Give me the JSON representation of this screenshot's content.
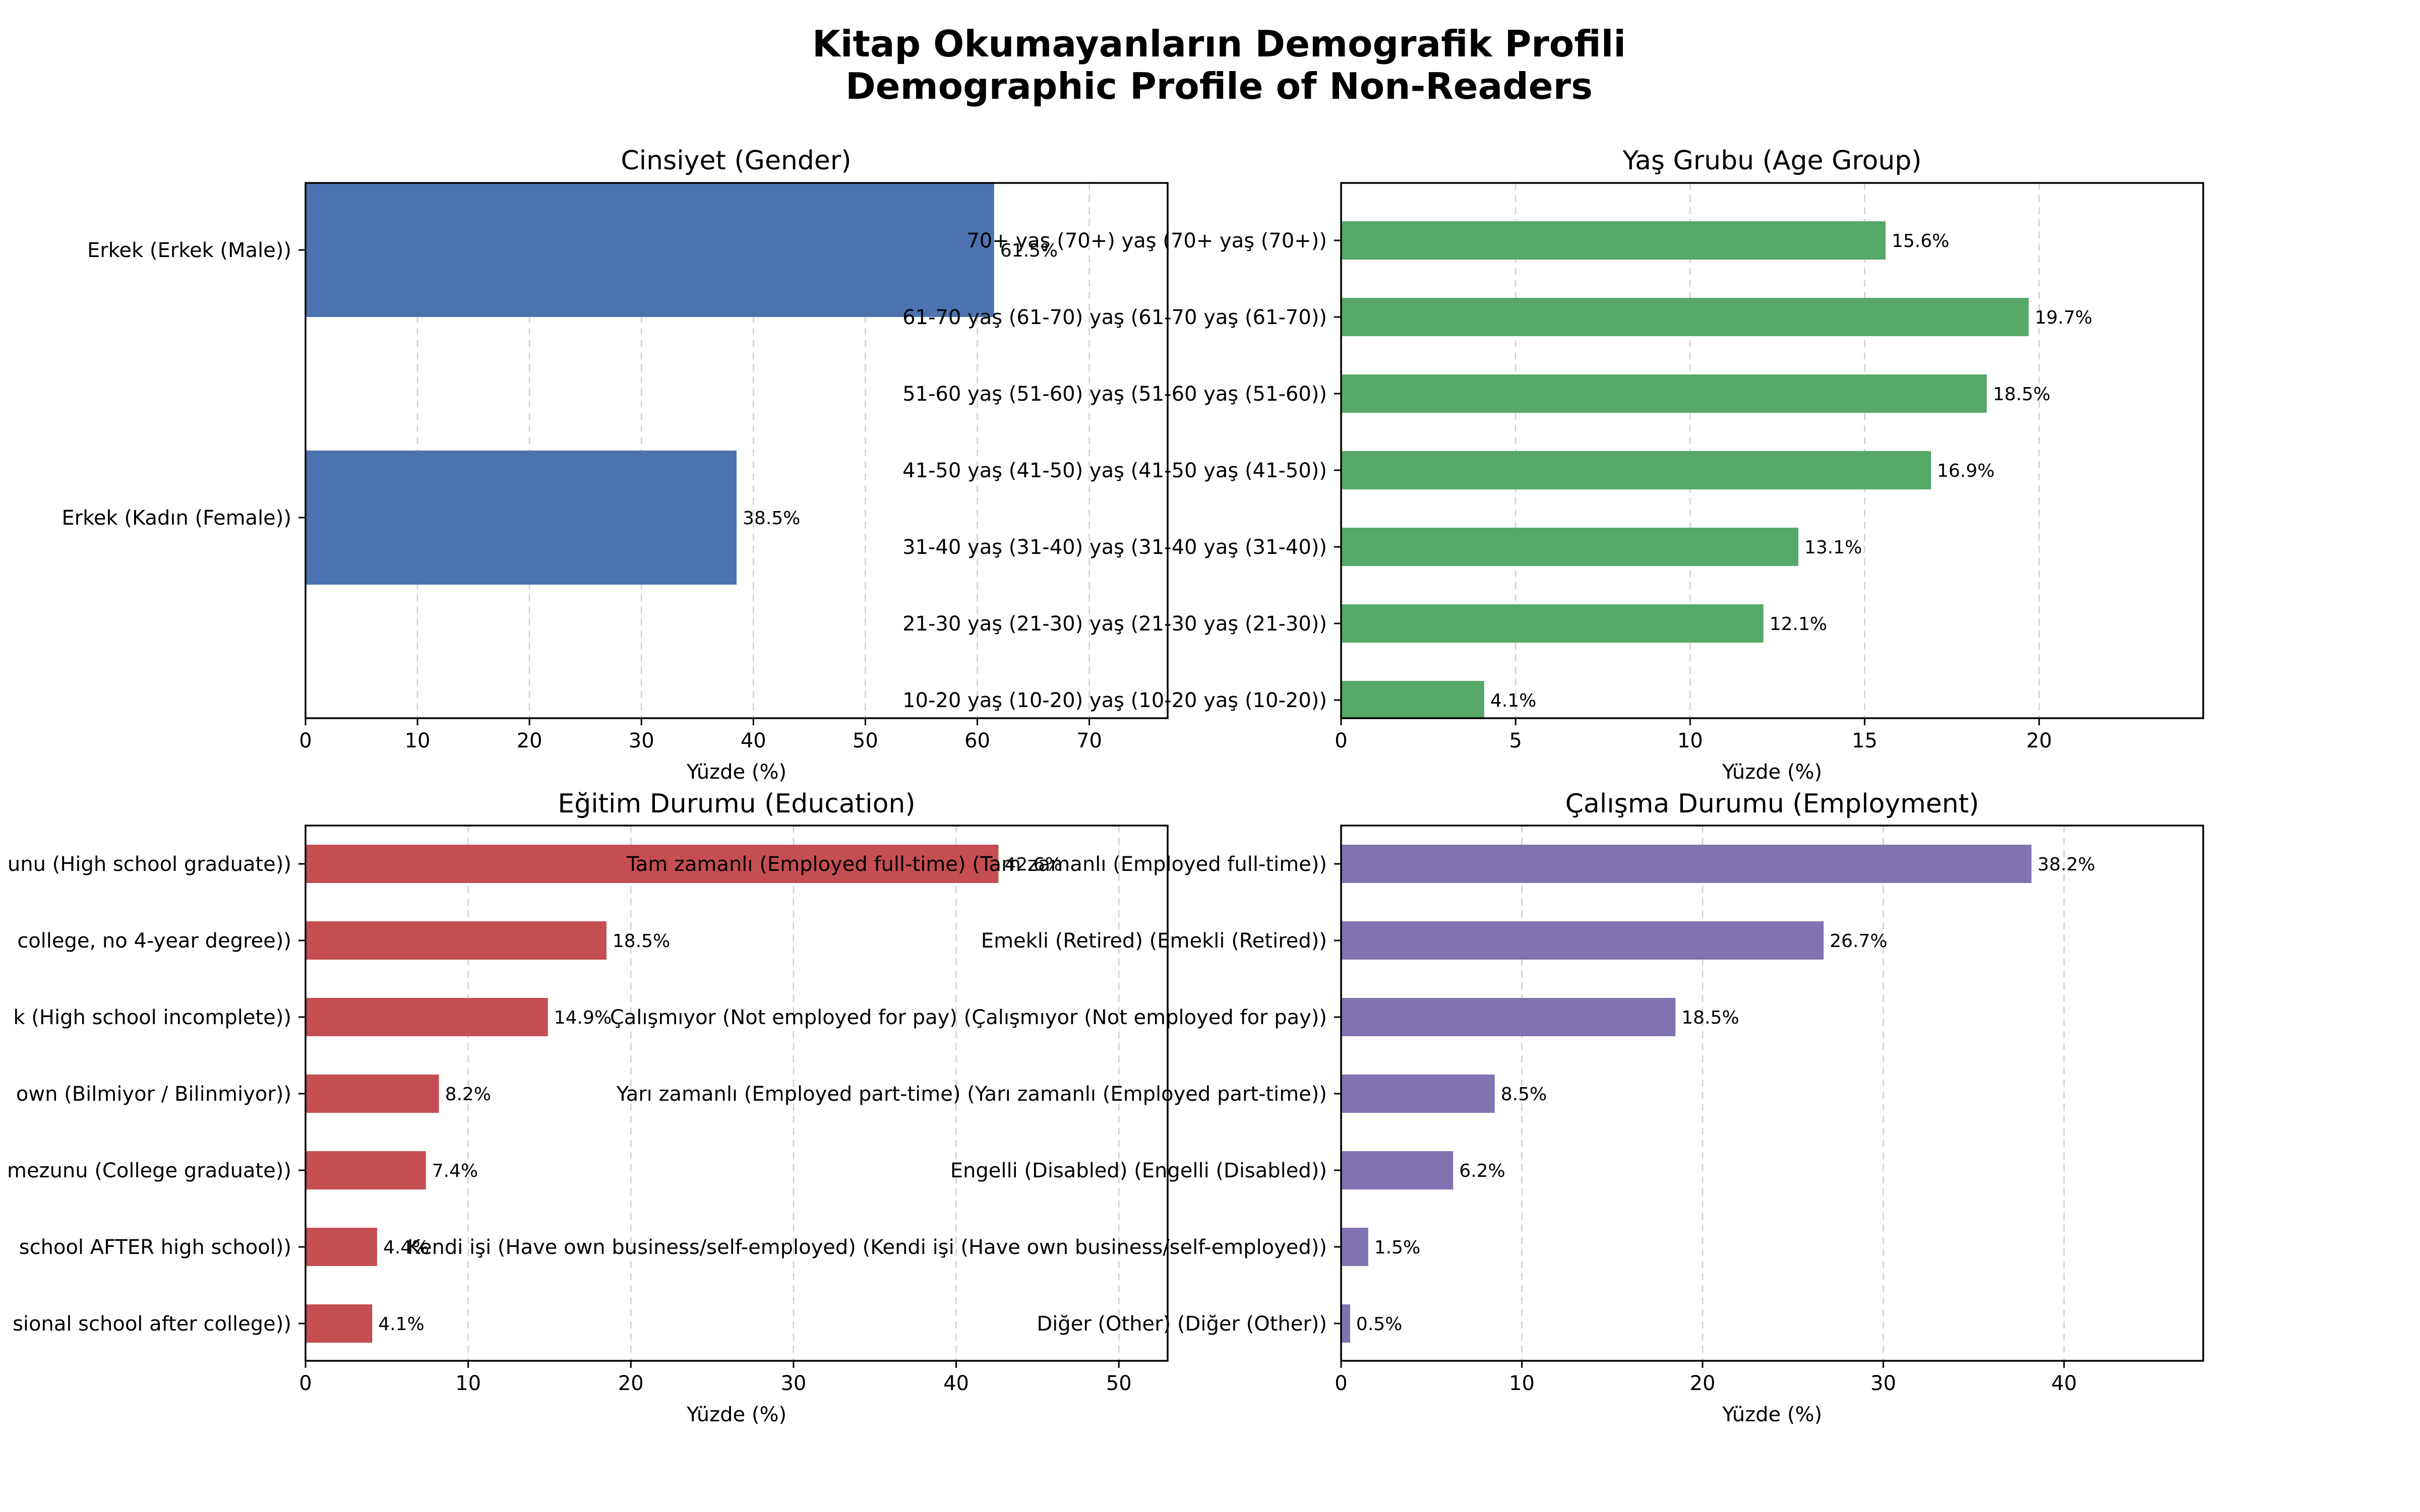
{
  "figure": {
    "title_line1": "Kitap Okumayanların Demografik Profili",
    "title_line2": "Demographic Profile of Non-Readers"
  },
  "chart_data": [
    {
      "type": "bar",
      "orientation": "horizontal",
      "title": "Cinsiyet (Gender)",
      "xlabel": "Yüzde (%)",
      "ylabel": "",
      "xlim": [
        0,
        77
      ],
      "xticks": [
        0,
        10,
        20,
        30,
        40,
        50,
        60,
        70
      ],
      "grid": "x-dashed",
      "bar_color": "#4c72b0",
      "categories": [
        "Erkek (Erkek (Male))",
        "Erkek (Kadın (Female))"
      ],
      "values": [
        61.5,
        38.5
      ],
      "value_labels": [
        "61.5%",
        "38.5%"
      ]
    },
    {
      "type": "bar",
      "orientation": "horizontal",
      "title": "Yaş Grubu (Age Group)",
      "xlabel": "Yüzde (%)",
      "ylabel": "",
      "xlim": [
        0,
        24.7
      ],
      "xticks": [
        0,
        5,
        10,
        15,
        20
      ],
      "grid": "x-dashed",
      "bar_color": "#55a868",
      "categories": [
        "70+ yaş (70+) yaş (70+ yaş (70+))",
        "61-70 yaş (61-70) yaş (61-70 yaş (61-70))",
        "51-60 yaş (51-60) yaş (51-60 yaş (51-60))",
        "41-50 yaş (41-50) yaş (41-50 yaş (41-50))",
        "31-40 yaş (31-40) yaş (31-40 yaş (31-40))",
        "21-30 yaş (21-30) yaş (21-30 yaş (21-30))",
        "10-20 yaş (10-20) yaş (10-20 yaş (10-20))"
      ],
      "values": [
        15.6,
        19.7,
        18.5,
        16.9,
        13.1,
        12.1,
        4.1
      ],
      "value_labels": [
        "15.6%",
        "19.7%",
        "18.5%",
        "16.9%",
        "13.1%",
        "12.1%",
        "4.1%"
      ]
    },
    {
      "type": "bar",
      "orientation": "horizontal",
      "title": "Eğitim Durumu (Education)",
      "xlabel": "Yüzde (%)",
      "ylabel": "",
      "xlim": [
        0,
        53
      ],
      "xticks": [
        0,
        10,
        20,
        30,
        40,
        50
      ],
      "grid": "x-dashed",
      "bar_color": "#c44e52",
      "categories": [
        "unu (High school graduate))",
        "college, no 4-year degree))",
        "k (High school incomplete))",
        "own (Bilmiyor / Bilinmiyor))",
        "mezunu (College graduate))",
        "school AFTER high school))",
        "sional school after college))"
      ],
      "values": [
        42.6,
        18.5,
        14.9,
        8.2,
        7.4,
        4.4,
        4.1
      ],
      "value_labels": [
        "42.6%",
        "18.5%",
        "14.9%",
        "8.2%",
        "7.4%",
        "4.4%",
        "4.1%"
      ]
    },
    {
      "type": "bar",
      "orientation": "horizontal",
      "title": "Çalışma Durumu (Employment)",
      "xlabel": "Yüzde (%)",
      "ylabel": "",
      "xlim": [
        0,
        47.7
      ],
      "xticks": [
        0,
        10,
        20,
        30,
        40
      ],
      "grid": "x-dashed",
      "bar_color": "#8172b2",
      "categories": [
        "Tam zamanlı (Employed full-time) (Tam zamanlı (Employed full-time))",
        "Emekli (Retired) (Emekli (Retired))",
        "Çalışmıyor (Not employed for pay) (Çalışmıyor (Not employed for pay))",
        "Yarı zamanlı (Employed part-time) (Yarı zamanlı (Employed part-time))",
        "Engelli (Disabled) (Engelli (Disabled))",
        "Kendi işi (Have own business/self-employed) (Kendi işi (Have own business/self-employed))",
        "Diğer (Other) (Diğer (Other))"
      ],
      "values": [
        38.2,
        26.7,
        18.5,
        8.5,
        6.2,
        1.5,
        0.5
      ],
      "value_labels": [
        "38.2%",
        "26.7%",
        "18.5%",
        "8.5%",
        "6.2%",
        "1.5%",
        "0.5%"
      ]
    }
  ]
}
